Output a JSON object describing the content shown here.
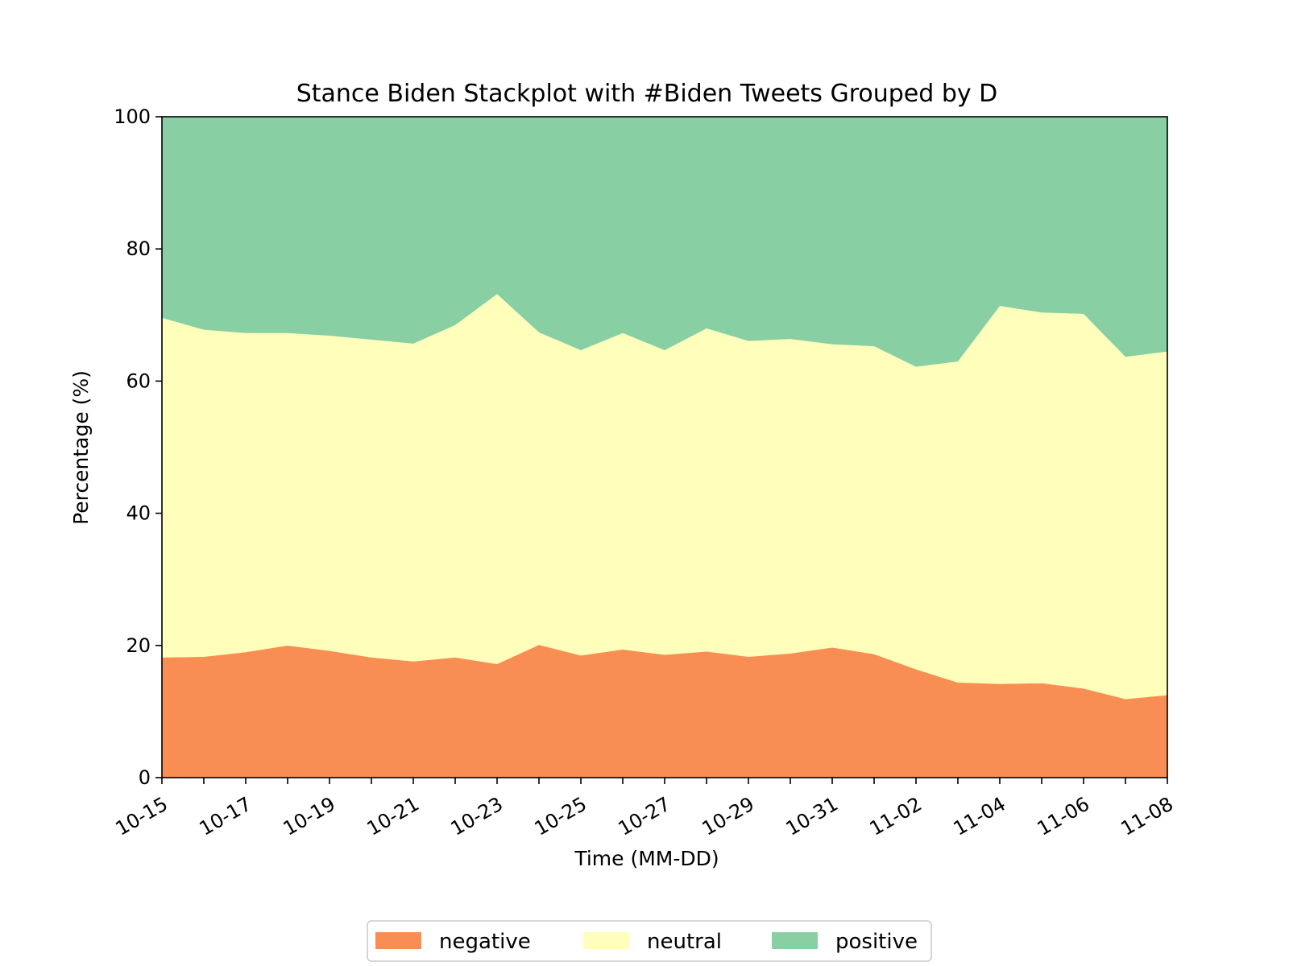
{
  "chart_data": {
    "type": "area",
    "stacked": true,
    "title": "Stance Biden Stackplot with #Biden Tweets Grouped by D",
    "xlabel": "Time (MM-DD)",
    "ylabel": "Percentage (%)",
    "ylim": [
      0,
      100
    ],
    "yticks": [
      0,
      20,
      40,
      60,
      80,
      100
    ],
    "x": [
      "10-15",
      "10-16",
      "10-17",
      "10-18",
      "10-19",
      "10-20",
      "10-21",
      "10-22",
      "10-23",
      "10-24",
      "10-25",
      "10-26",
      "10-27",
      "10-28",
      "10-29",
      "10-30",
      "10-31",
      "11-01",
      "11-02",
      "11-03",
      "11-04",
      "11-05",
      "11-06",
      "11-07",
      "11-08"
    ],
    "xtick_labels": [
      "10-15",
      "10-17",
      "10-19",
      "10-21",
      "10-23",
      "10-25",
      "10-27",
      "10-29",
      "10-31",
      "11-02",
      "11-04",
      "11-06",
      "11-08"
    ],
    "legend_position": "bottom-center",
    "grid": false,
    "series": [
      {
        "name": "negative",
        "color": "#f88e54",
        "values": [
          18.2,
          18.3,
          19.0,
          20.0,
          19.2,
          18.2,
          17.6,
          18.2,
          17.2,
          20.1,
          18.5,
          19.4,
          18.6,
          19.1,
          18.3,
          18.8,
          19.7,
          18.7,
          16.4,
          14.4,
          14.2,
          14.3,
          13.5,
          11.9,
          12.5
        ]
      },
      {
        "name": "neutral",
        "color": "#ffffbb",
        "values": [
          51.4,
          49.5,
          48.3,
          47.3,
          47.7,
          48.1,
          48.1,
          50.3,
          56.0,
          47.3,
          46.2,
          47.9,
          46.1,
          48.9,
          47.8,
          47.6,
          45.9,
          46.6,
          45.8,
          48.6,
          57.2,
          56.1,
          56.7,
          51.8,
          52.0
        ]
      },
      {
        "name": "positive",
        "color": "#88cfa4",
        "values": [
          30.4,
          32.2,
          32.7,
          32.7,
          33.1,
          33.7,
          34.3,
          31.5,
          26.8,
          32.6,
          35.3,
          32.7,
          35.3,
          32.0,
          33.9,
          33.6,
          34.4,
          34.7,
          37.8,
          37.0,
          28.6,
          29.6,
          29.8,
          36.3,
          35.5
        ]
      }
    ]
  }
}
